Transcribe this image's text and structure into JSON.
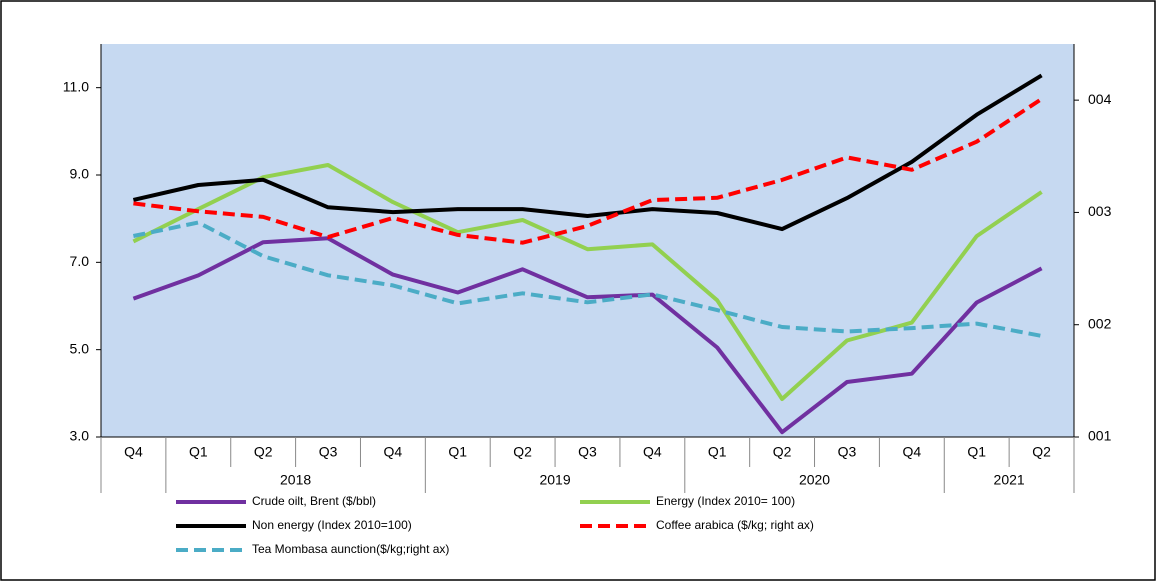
{
  "chart_data": {
    "type": "line",
    "categories": [
      "Q4",
      "Q1",
      "Q2",
      "Q3",
      "Q4",
      "Q1",
      "Q2",
      "Q3",
      "Q4",
      "Q1",
      "Q2",
      "Q3",
      "Q4",
      "Q1",
      "Q2"
    ],
    "groups": [
      {
        "label": "2018",
        "from": 1,
        "to": 4
      },
      {
        "label": "2019",
        "from": 5,
        "to": 8
      },
      {
        "label": "2020",
        "from": 9,
        "to": 12
      },
      {
        "label": "2021",
        "from": 13,
        "to": 14
      }
    ],
    "ylim": [
      3,
      12
    ],
    "yticks": [
      {
        "value": 3,
        "label": "3.0"
      },
      {
        "value": 5,
        "label": "5.0"
      },
      {
        "value": 7,
        "label": "7.0"
      },
      {
        "value": 9,
        "label": "9.0"
      },
      {
        "value": 11,
        "label": "11.0"
      }
    ],
    "y2lim": [
      1,
      4.5
    ],
    "y2ticks": [
      {
        "value": 1,
        "label": "001"
      },
      {
        "value": 2,
        "label": "002"
      },
      {
        "value": 3,
        "label": "003"
      },
      {
        "value": 4,
        "label": "004"
      }
    ],
    "plot_background": "#c6d9f1",
    "series": [
      {
        "name": "Crude oilt, Brent ($/bbl)",
        "color": "#7030a0",
        "dashed": false,
        "values": [
          6.17,
          6.7,
          7.46,
          7.55,
          6.72,
          6.31,
          6.84,
          6.2,
          6.26,
          5.05,
          3.11,
          4.26,
          4.45,
          6.08,
          6.86
        ]
      },
      {
        "name": "Energy (Index 2010= 100)",
        "color": "#92d050",
        "dashed": false,
        "values": [
          7.48,
          8.22,
          8.95,
          9.23,
          8.38,
          7.69,
          7.97,
          7.3,
          7.41,
          6.13,
          3.87,
          5.21,
          5.62,
          7.6,
          8.61
        ]
      },
      {
        "name": "Non energy (Index 2010=100)",
        "color": "#000000",
        "dashed": false,
        "values": [
          8.43,
          8.77,
          8.89,
          8.26,
          8.15,
          8.22,
          8.22,
          8.06,
          8.22,
          8.13,
          7.76,
          8.47,
          9.3,
          10.38,
          11.28
        ]
      },
      {
        "name": "Coffee arabica ($/kg; right ax)",
        "color": "#ff0000",
        "dashed": true,
        "axis": "y2",
        "values": [
          3.08,
          3.01,
          2.96,
          2.78,
          2.95,
          2.8,
          2.73,
          2.88,
          3.11,
          3.13,
          3.29,
          3.49,
          3.38,
          3.63,
          4.01
        ]
      },
      {
        "name": "Tea Mombasa aunction($/kg;right ax)",
        "color": "#4bacc6",
        "dashed": true,
        "axis": "y2",
        "values": [
          2.79,
          2.91,
          2.61,
          2.44,
          2.35,
          2.19,
          2.28,
          2.2,
          2.27,
          2.13,
          1.98,
          1.94,
          1.97,
          2.01,
          1.9
        ]
      }
    ]
  }
}
